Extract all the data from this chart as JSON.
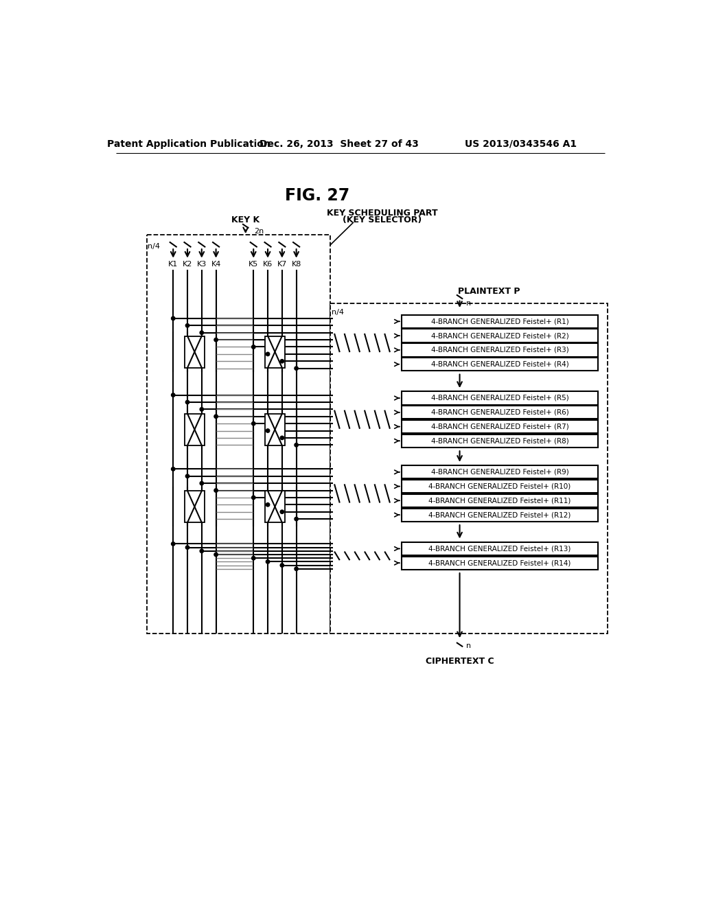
{
  "header_left": "Patent Application Publication",
  "header_mid": "Dec. 26, 2013  Sheet 27 of 43",
  "header_right": "US 2013/0343546 A1",
  "fig_title": "FIG. 27",
  "key_label": "KEY K",
  "key_2n": "2n",
  "ks_label_1": "KEY SCHEDULING PART",
  "ks_label_2": "(KEY SELECTOR)",
  "plaintext_label": "PLAINTEXT P",
  "plaintext_n": "n",
  "ciphertext_label": "CIPHERTEXT C",
  "ciphertext_n": "n",
  "n4_left": "n/4",
  "n4_right": "n/4",
  "key_labels": [
    "K1",
    "K2",
    "K3",
    "K4",
    "K5",
    "K6",
    "K7",
    "K8"
  ],
  "round_groups": [
    [
      "4-BRANCH GENERALIZED Feistel+ (R1)",
      "4-BRANCH GENERALIZED Feistel+ (R2)",
      "4-BRANCH GENERALIZED Feistel+ (R3)",
      "4-BRANCH GENERALIZED Feistel+ (R4)"
    ],
    [
      "4-BRANCH GENERALIZED Feistel+ (R5)",
      "4-BRANCH GENERALIZED Feistel+ (R6)",
      "4-BRANCH GENERALIZED Feistel+ (R7)",
      "4-BRANCH GENERALIZED Feistel+ (R8)"
    ],
    [
      "4-BRANCH GENERALIZED Feistel+ (R9)",
      "4-BRANCH GENERALIZED Feistel+ (R10)",
      "4-BRANCH GENERALIZED Feistel+ (R11)",
      "4-BRANCH GENERALIZED Feistel+ (R12)"
    ],
    [
      "4-BRANCH GENERALIZED Feistel+ (R13)",
      "4-BRANCH GENERALIZED Feistel+ (R14)"
    ]
  ]
}
